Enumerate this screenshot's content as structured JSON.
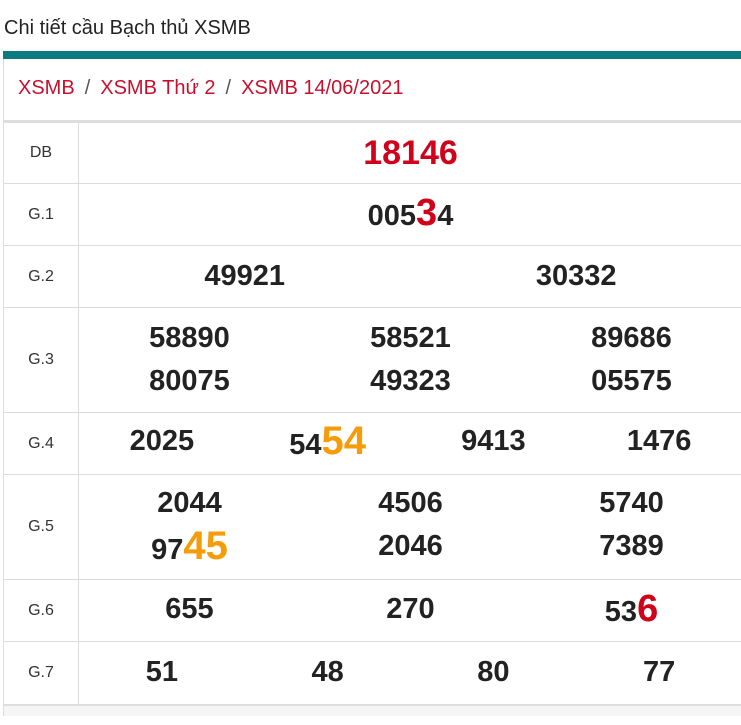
{
  "header": {
    "title": "Chi tiết cầu Bạch thủ XSMB",
    "accent": "#0b7b80"
  },
  "breadcrumb": [
    "XSMB",
    "XSMB Thứ 2",
    "XSMB 14/06/2021"
  ],
  "results": {
    "db": {
      "label": "DB",
      "value": "18146"
    },
    "g1": {
      "label": "G.1",
      "pre": "005",
      "hl": "3",
      "post": "4"
    },
    "g2": {
      "label": "G.2",
      "values": [
        "49921",
        "30332"
      ]
    },
    "g3": {
      "label": "G.3",
      "values": [
        "58890",
        "58521",
        "89686",
        "80075",
        "49323",
        "05575"
      ]
    },
    "g4": {
      "label": "G.4",
      "values": [
        "2025",
        "9413",
        "1476"
      ],
      "pre": "54",
      "hl": "54"
    },
    "g5": {
      "label": "G.5",
      "values": [
        "2044",
        "4506",
        "5740",
        "2046",
        "7389"
      ],
      "pre": "97",
      "hl": "45"
    },
    "g6": {
      "label": "G.6",
      "values": [
        "655",
        "270"
      ],
      "pre": "53",
      "hl": "6"
    },
    "g7": {
      "label": "G.7",
      "values": [
        "51",
        "48",
        "80",
        "77"
      ]
    }
  },
  "colors": {
    "highlight_red": "#d0021b",
    "highlight_orange": "#f59c0b"
  }
}
